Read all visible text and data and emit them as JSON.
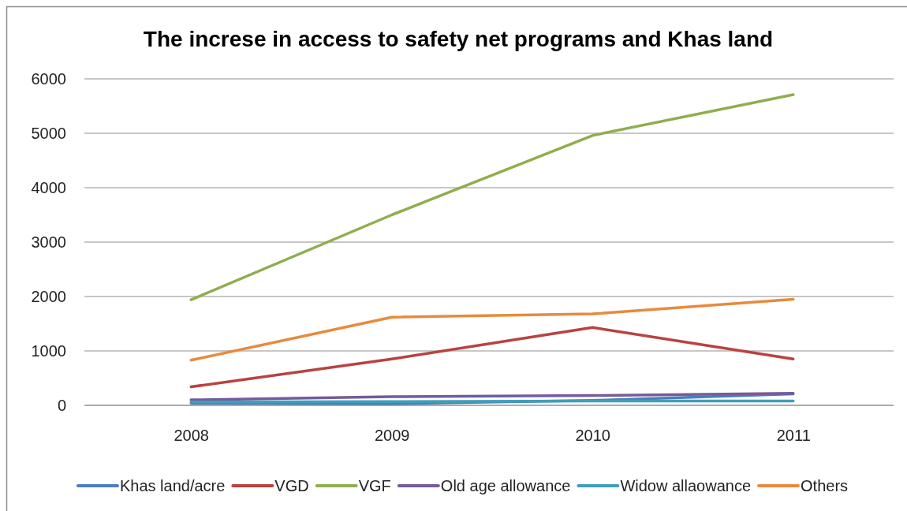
{
  "chart_data": {
    "type": "line",
    "title": "The increse in access to safety net programs and Khas land",
    "categories": [
      "2008",
      "2009",
      "2010",
      "2011"
    ],
    "series": [
      {
        "name": "Khas land/acre",
        "color": "#4a7ebb",
        "values": [
          40,
          30,
          90,
          210
        ]
      },
      {
        "name": "VGD",
        "color": "#b8433f",
        "values": [
          340,
          850,
          1430,
          850
        ]
      },
      {
        "name": "VGF",
        "color": "#8fae4e",
        "values": [
          1940,
          3500,
          4960,
          5710
        ]
      },
      {
        "name": "Old age allowance",
        "color": "#775a9c",
        "values": [
          100,
          160,
          180,
          220
        ]
      },
      {
        "name": "Widow allaowance",
        "color": "#3f9fbb",
        "values": [
          60,
          70,
          80,
          80
        ]
      },
      {
        "name": "Others",
        "color": "#e88a3c",
        "values": [
          830,
          1620,
          1680,
          1950
        ]
      }
    ],
    "ylim": [
      0,
      6000
    ],
    "yticks": [
      0,
      1000,
      2000,
      3000,
      4000,
      5000,
      6000
    ],
    "grid": "y",
    "legend": "bottom"
  }
}
